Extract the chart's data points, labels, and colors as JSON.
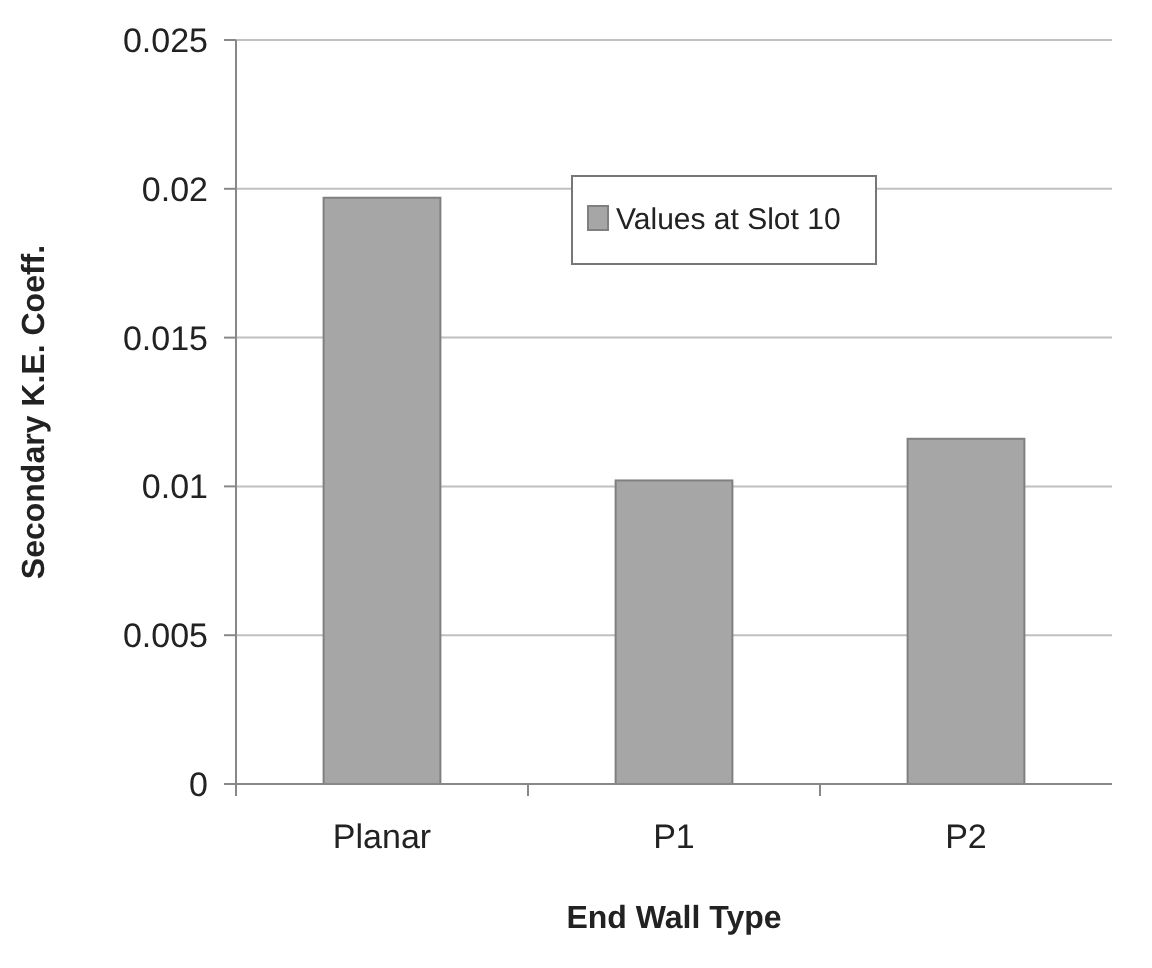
{
  "chart_data": {
    "type": "bar",
    "categories": [
      "Planar",
      "P1",
      "P2"
    ],
    "series": [
      {
        "name": "Values at Slot 10",
        "color": "#a6a6a6",
        "values": [
          0.0197,
          0.0102,
          0.0116
        ]
      }
    ],
    "xlabel": "End Wall Type",
    "ylabel": "Secondary K.E. Coeff.",
    "ylim": [
      0,
      0.025
    ],
    "yticks": [
      0,
      0.005,
      0.01,
      0.015,
      0.02,
      0.025
    ],
    "grid": "y",
    "legend": "top right"
  }
}
